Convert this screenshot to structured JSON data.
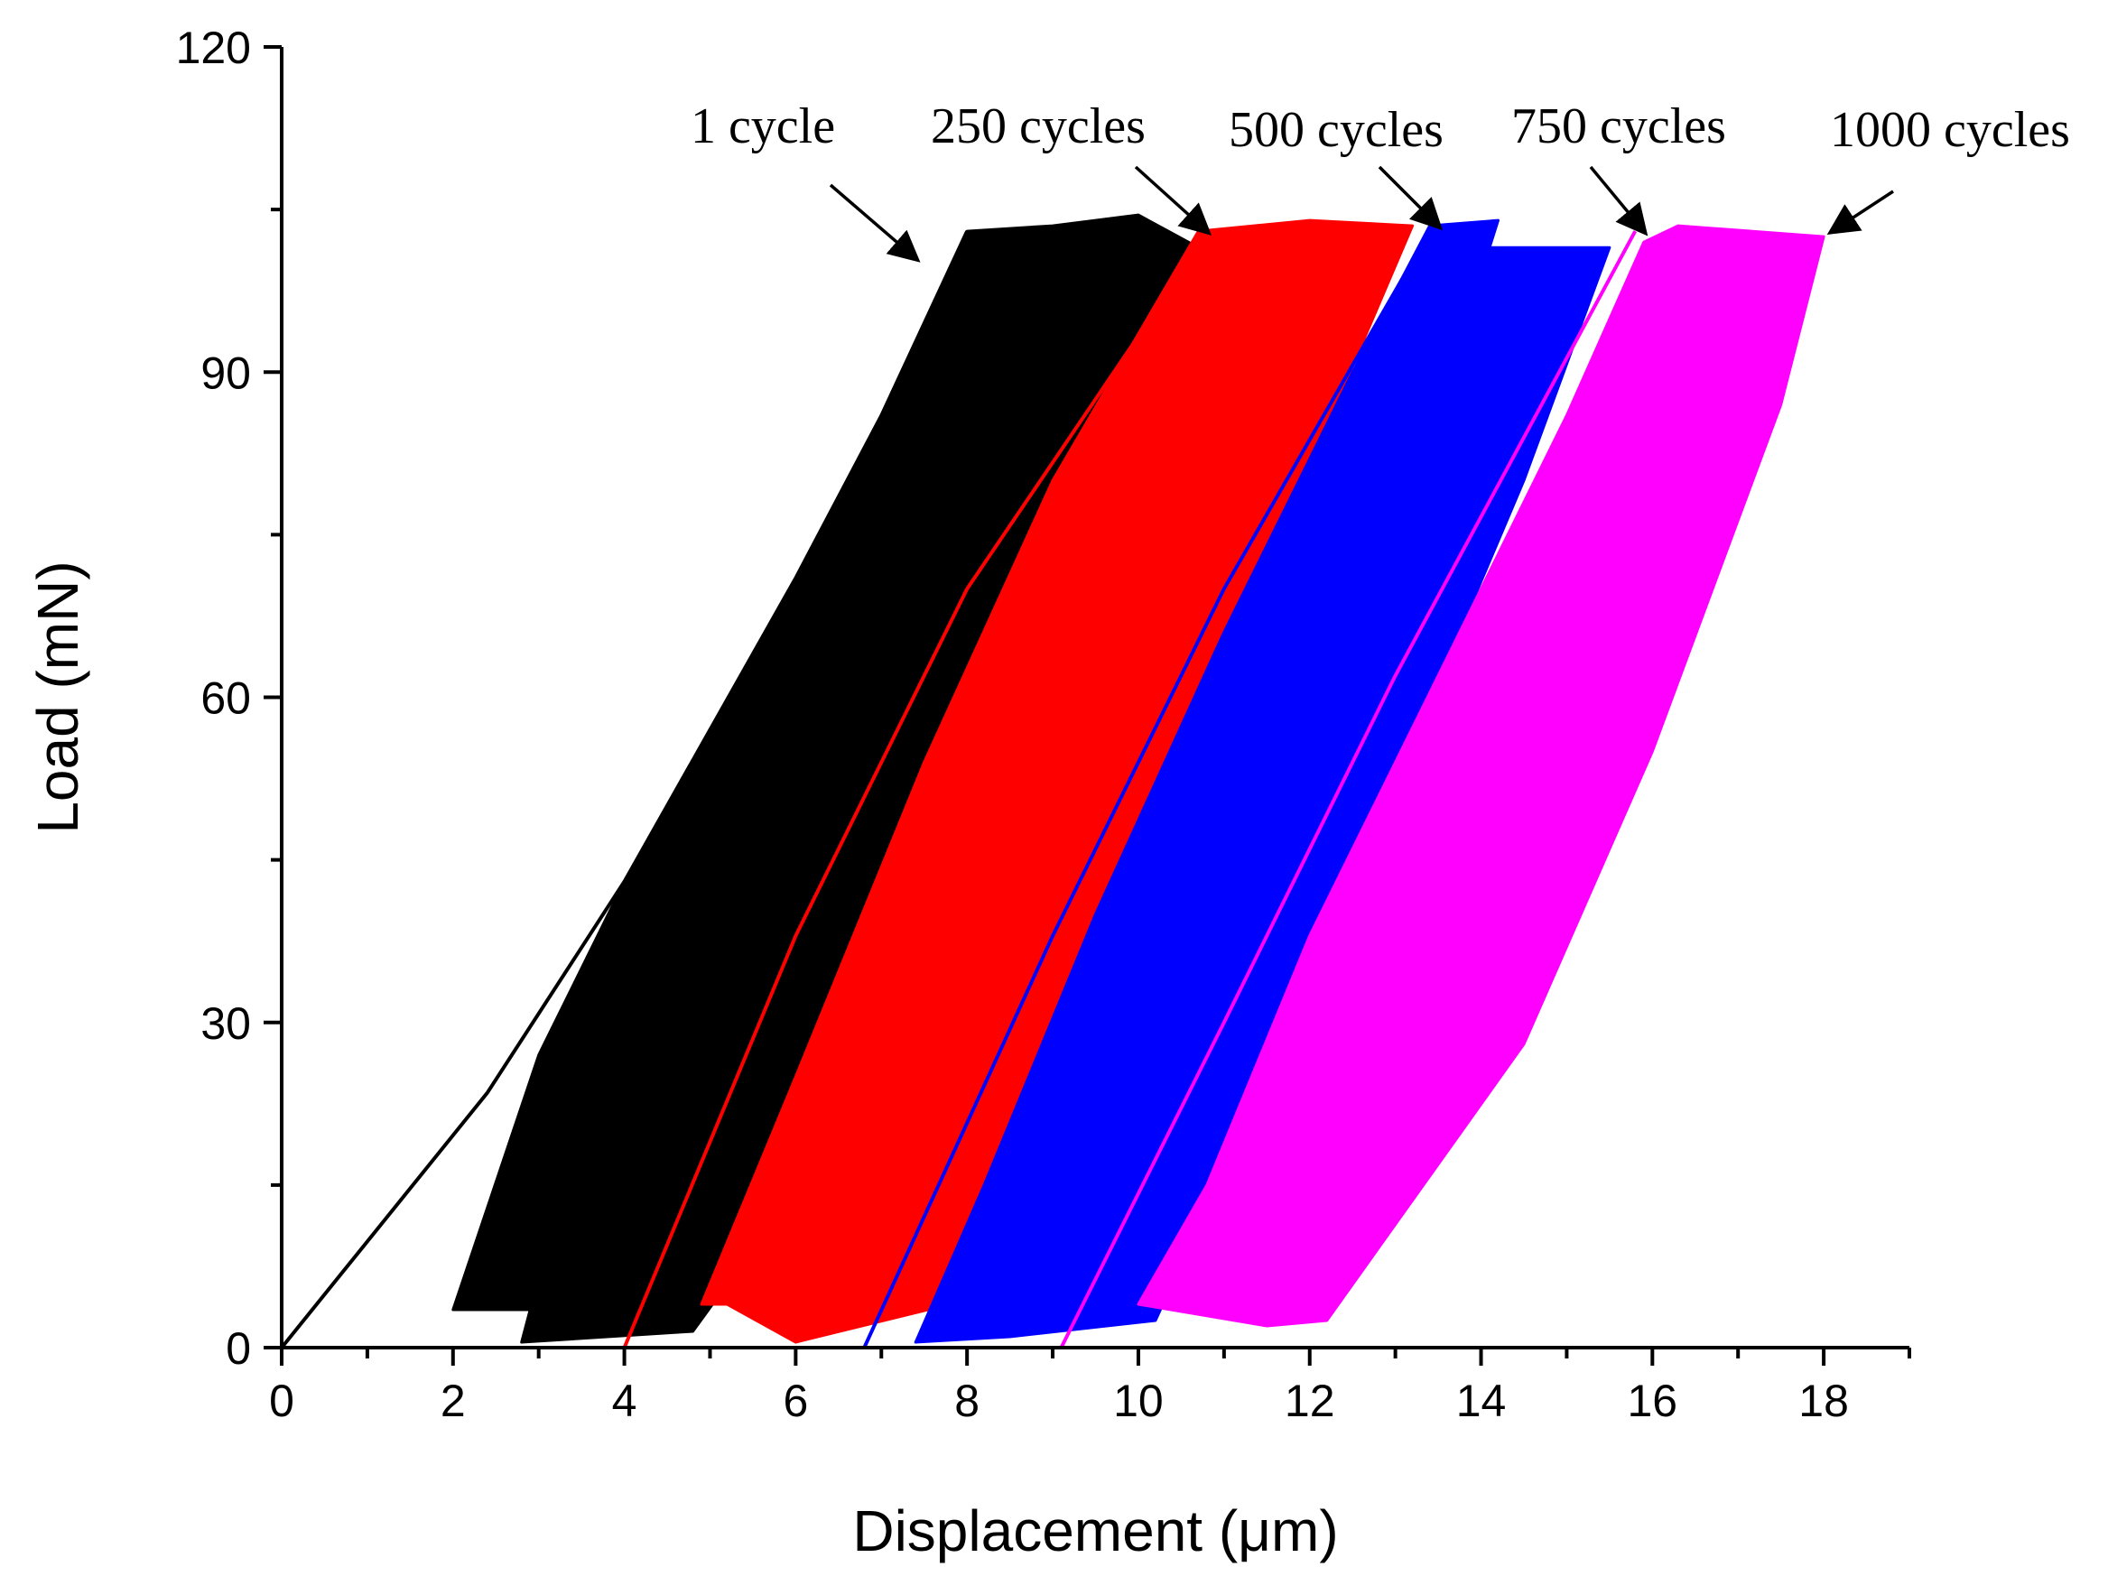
{
  "chart_data": {
    "type": "line",
    "title": "",
    "xlabel": "Displacement (μm)",
    "ylabel": "Load (mN)",
    "xlim": [
      0,
      19
    ],
    "ylim": [
      0,
      120
    ],
    "x_ticks": [
      0,
      2,
      4,
      6,
      8,
      10,
      12,
      14,
      16,
      18
    ],
    "y_ticks": [
      0,
      30,
      60,
      90,
      120
    ],
    "x_ticks_label_text": [
      "0",
      "2",
      "4",
      "6",
      "8",
      "10",
      "12",
      "14",
      "16",
      "18"
    ],
    "y_ticks_label_text": [
      "0",
      "30",
      "60",
      "90",
      "120"
    ],
    "grid": false,
    "legend": "none",
    "series": [
      {
        "name": "1 cycle",
        "color": "#000000",
        "first_loading_path": [
          [
            0,
            0
          ],
          [
            2.4,
            23.5
          ],
          [
            4,
            43
          ],
          [
            5,
            57
          ],
          [
            6,
            71
          ],
          [
            7,
            86
          ],
          [
            8,
            103
          ]
        ],
        "band_polygon": [
          [
            2,
            3.5
          ],
          [
            3,
            27
          ],
          [
            4,
            43
          ],
          [
            5,
            57
          ],
          [
            6,
            71
          ],
          [
            7,
            86
          ],
          [
            8,
            103
          ],
          [
            9,
            103.5
          ],
          [
            10,
            104.5
          ],
          [
            10.7,
            101.5
          ],
          [
            8.5,
            55
          ],
          [
            6.5,
            20
          ],
          [
            4.8,
            1.5
          ],
          [
            2.8,
            0.5
          ],
          [
            2.9,
            3.5
          ]
        ]
      },
      {
        "name": "250 cycles",
        "color": "#ff0000",
        "first_loading_path": [
          [
            4,
            0
          ],
          [
            6,
            38
          ],
          [
            8,
            70
          ],
          [
            10.7,
            101.5
          ]
        ],
        "band_polygon": [
          [
            4.9,
            4
          ],
          [
            6,
            25
          ],
          [
            7.5,
            54
          ],
          [
            9,
            80
          ],
          [
            10.7,
            103
          ],
          [
            12,
            104
          ],
          [
            13.2,
            103.5
          ],
          [
            12.2,
            85
          ],
          [
            10.8,
            55
          ],
          [
            9.3,
            25
          ],
          [
            7.8,
            4
          ],
          [
            6,
            0.5
          ],
          [
            5.2,
            4
          ]
        ]
      },
      {
        "name": "500 cycles",
        "color": "#0000ff",
        "first_loading_path": [
          [
            6.8,
            0
          ],
          [
            9,
            38
          ],
          [
            11,
            70
          ],
          [
            13.4,
            103
          ]
        ],
        "band_polygon": [
          [
            7.4,
            0.5
          ],
          [
            8.2,
            15
          ],
          [
            9.5,
            40
          ],
          [
            11,
            66
          ],
          [
            12.5,
            90
          ],
          [
            13.4,
            103.5
          ],
          [
            14.2,
            104
          ],
          [
            14.1,
            101.5
          ],
          [
            15.5,
            101.5
          ],
          [
            14.5,
            80
          ],
          [
            13,
            52
          ],
          [
            11.5,
            25
          ],
          [
            10.2,
            2.5
          ],
          [
            8.5,
            1
          ]
        ]
      },
      {
        "name": "750 cycles",
        "color": "#ff00ff",
        "first_loading_path": [
          [
            9.1,
            0
          ],
          [
            11,
            30
          ],
          [
            13,
            62
          ],
          [
            15.8,
            103
          ]
        ],
        "band_polygon": [
          [
            10,
            4
          ],
          [
            10.8,
            15
          ],
          [
            12,
            38
          ],
          [
            13.5,
            62
          ],
          [
            15,
            86
          ],
          [
            15.9,
            102
          ],
          [
            16.3,
            103.5
          ],
          [
            18,
            102.5
          ],
          [
            17.5,
            87
          ],
          [
            16,
            55
          ],
          [
            14.5,
            28
          ],
          [
            12.2,
            2.5
          ],
          [
            11.5,
            2
          ]
        ]
      }
    ],
    "annotations": [
      {
        "text": "1 cycle",
        "points_to": [
          7.4,
          100.5
        ]
      },
      {
        "text": "250 cycles",
        "points_to": [
          10.8,
          103
        ]
      },
      {
        "text": "500 cycles",
        "points_to": [
          13.5,
          103.5
        ]
      },
      {
        "text": "750 cycles",
        "points_to": [
          15.9,
          103
        ]
      },
      {
        "text": "1000 cycles",
        "points_to": [
          18.1,
          103
        ]
      }
    ]
  }
}
